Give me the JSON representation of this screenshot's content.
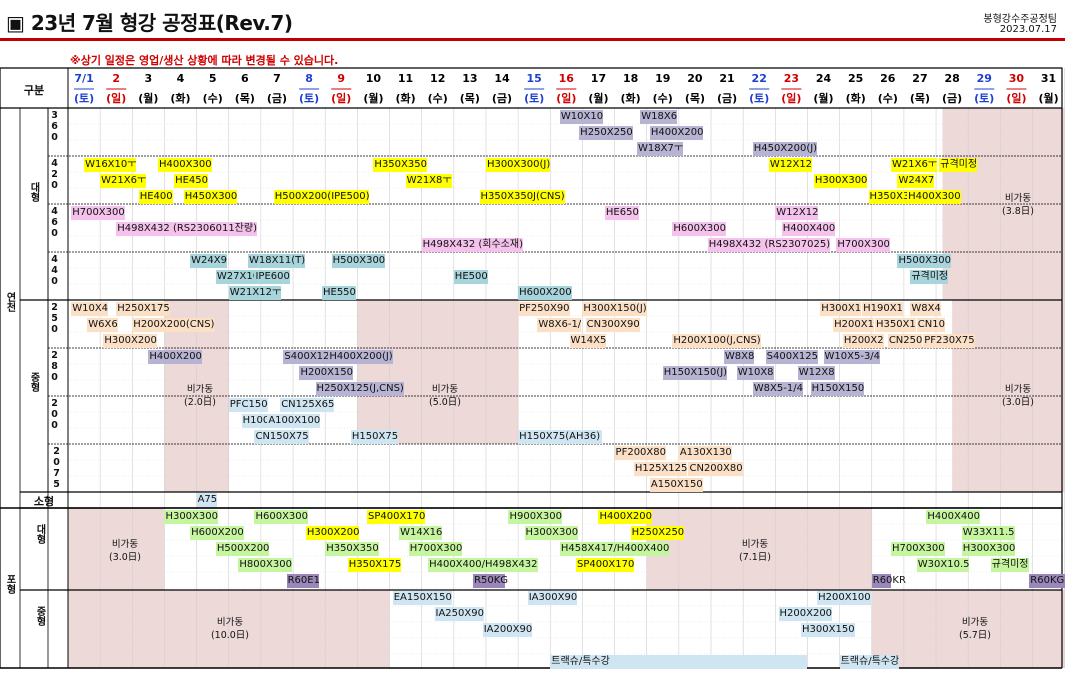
{
  "header": {
    "title": "▣ 23년 7월 형강 공정표(Rev.7)",
    "team": "봉형강수주공정팀",
    "date": "2023.07.17",
    "notice": "※상기 일정은 영업/생산 상황에 따라 변경될 수 있습니다."
  },
  "table": {
    "corner_label": "구분",
    "plants": [
      {
        "label": "연천"
      },
      {
        "label": "포형"
      }
    ],
    "groups": [
      {
        "label": "대형"
      },
      {
        "label": "중형"
      },
      {
        "label": "소형"
      },
      {
        "label": "대형"
      },
      {
        "label": "중형"
      }
    ],
    "mills": [
      {
        "label": "360"
      },
      {
        "label": "420"
      },
      {
        "label": "460"
      },
      {
        "label": "440"
      },
      {
        "label": "250"
      },
      {
        "label": "280"
      },
      {
        "label": "200"
      },
      {
        "label": "2075"
      }
    ]
  },
  "days": [
    {
      "d": "7/1",
      "w": "(토)",
      "c": "blue"
    },
    {
      "d": "2",
      "w": "(일)",
      "c": "red"
    },
    {
      "d": "3",
      "w": "(월)",
      "c": "black"
    },
    {
      "d": "4",
      "w": "(화)",
      "c": "black"
    },
    {
      "d": "5",
      "w": "(수)",
      "c": "black"
    },
    {
      "d": "6",
      "w": "(목)",
      "c": "black"
    },
    {
      "d": "7",
      "w": "(금)",
      "c": "black"
    },
    {
      "d": "8",
      "w": "(토)",
      "c": "blue"
    },
    {
      "d": "9",
      "w": "(일)",
      "c": "red"
    },
    {
      "d": "10",
      "w": "(월)",
      "c": "black"
    },
    {
      "d": "11",
      "w": "(화)",
      "c": "black"
    },
    {
      "d": "12",
      "w": "(수)",
      "c": "black"
    },
    {
      "d": "13",
      "w": "(목)",
      "c": "black"
    },
    {
      "d": "14",
      "w": "(금)",
      "c": "black"
    },
    {
      "d": "15",
      "w": "(토)",
      "c": "blue"
    },
    {
      "d": "16",
      "w": "(일)",
      "c": "red"
    },
    {
      "d": "17",
      "w": "(월)",
      "c": "black"
    },
    {
      "d": "18",
      "w": "(화)",
      "c": "black"
    },
    {
      "d": "19",
      "w": "(수)",
      "c": "black"
    },
    {
      "d": "20",
      "w": "(목)",
      "c": "black"
    },
    {
      "d": "21",
      "w": "(금)",
      "c": "black"
    },
    {
      "d": "22",
      "w": "(토)",
      "c": "blue"
    },
    {
      "d": "23",
      "w": "(일)",
      "c": "red"
    },
    {
      "d": "24",
      "w": "(월)",
      "c": "black"
    },
    {
      "d": "25",
      "w": "(화)",
      "c": "black"
    },
    {
      "d": "26",
      "w": "(수)",
      "c": "black"
    },
    {
      "d": "27",
      "w": "(목)",
      "c": "black"
    },
    {
      "d": "28",
      "w": "(금)",
      "c": "black"
    },
    {
      "d": "29",
      "w": "(토)",
      "c": "blue"
    },
    {
      "d": "30",
      "w": "(일)",
      "c": "red"
    },
    {
      "d": "31",
      "w": "(월)",
      "c": "black"
    }
  ],
  "colors": {
    "gray": "#b7b3d3",
    "yellow": "#ffff00",
    "pink": "#f4c2ec",
    "green": "#c6f5a0",
    "blue": "#a8d4dc",
    "purple": "#9a86b8",
    "peach": "#fbe0c6",
    "lightblue": "#cfe6f2",
    "offpink": "#eed9d9",
    "red": "#c00000"
  },
  "notes": [
    {
      "t": "비가동\n(3.8日)"
    },
    {
      "t": "비가동\n(2.0日)"
    },
    {
      "t": "비가동\n(5.0日)"
    },
    {
      "t": "비가동\n(3.0日)"
    },
    {
      "t": "비가동\n(3.0日)"
    },
    {
      "t": "비가동\n(7.1日)"
    },
    {
      "t": "비가동\n(10.0日)"
    },
    {
      "t": "비가동\n(5.7日)"
    }
  ],
  "bars": [
    {
      "t": "W10X10",
      "c": "gray"
    },
    {
      "t": "W18X6",
      "c": "gray"
    },
    {
      "t": "H250X250",
      "c": "gray"
    },
    {
      "t": "H400X200",
      "c": "gray"
    },
    {
      "t": "W18X7ㅜ",
      "c": "gray"
    },
    {
      "t": "H450X200(J)",
      "c": "gray"
    },
    {
      "t": "W16X10ㅜ",
      "c": "yellow"
    },
    {
      "t": "H400X300",
      "c": "yellow"
    },
    {
      "t": "H350X350",
      "c": "yellow"
    },
    {
      "t": "H300X300(J)",
      "c": "yellow"
    },
    {
      "t": "W12X12",
      "c": "yellow"
    },
    {
      "t": "W21X6ㅜ",
      "c": "yellow"
    },
    {
      "t": "규격미정",
      "c": "yellow"
    },
    {
      "t": "W21X6ㅜ",
      "c": "yellow"
    },
    {
      "t": "HE450",
      "c": "yellow"
    },
    {
      "t": "W21X8ㅜ",
      "c": "yellow"
    },
    {
      "t": "H300X300",
      "c": "yellow"
    },
    {
      "t": "W24X7",
      "c": "yellow"
    },
    {
      "t": "HE400",
      "c": "yellow"
    },
    {
      "t": "H450X300",
      "c": "yellow"
    },
    {
      "t": "H500X200(IPE500)",
      "c": "yellow"
    },
    {
      "t": "H350X350J(CNS)",
      "c": "yellow"
    },
    {
      "t": "H350X350",
      "c": "yellow"
    },
    {
      "t": "H400X300",
      "c": "yellow"
    },
    {
      "t": "H700X300",
      "c": "pink"
    },
    {
      "t": "HE650",
      "c": "pink"
    },
    {
      "t": "W12X12",
      "c": "pink"
    },
    {
      "t": "H498X432 (RS2306011잔량)",
      "c": "pink"
    },
    {
      "t": "H600X300",
      "c": "pink"
    },
    {
      "t": "H400X400",
      "c": "pink"
    },
    {
      "t": "H498X432 (회수소재)",
      "c": "pink"
    },
    {
      "t": "H498X432 (RS2307025)",
      "c": "pink"
    },
    {
      "t": "H700X300",
      "c": "pink"
    },
    {
      "t": "W24X9",
      "c": "blue"
    },
    {
      "t": "W18X11(T)",
      "c": "blue"
    },
    {
      "t": "H500X300",
      "c": "blue"
    },
    {
      "t": "H500X300",
      "c": "blue"
    },
    {
      "t": "W27X10",
      "c": "blue"
    },
    {
      "t": "IPE600",
      "c": "blue"
    },
    {
      "t": "HE500",
      "c": "blue"
    },
    {
      "t": "규격미정",
      "c": "blue"
    },
    {
      "t": "W21X12ㅜ",
      "c": "blue"
    },
    {
      "t": "HE550",
      "c": "blue"
    },
    {
      "t": "H600X200",
      "c": "blue"
    },
    {
      "t": "W10X4",
      "c": "peach"
    },
    {
      "t": "H250X175",
      "c": "peach"
    },
    {
      "t": "PF250X90",
      "c": "peach"
    },
    {
      "t": "H300X150(J)",
      "c": "peach"
    },
    {
      "t": "H300X1",
      "c": "peach"
    },
    {
      "t": "H190X1",
      "c": "peach"
    },
    {
      "t": "W8X4",
      "c": "peach"
    },
    {
      "t": "W6X6",
      "c": "peach"
    },
    {
      "t": "H200X200(CNS)",
      "c": "peach"
    },
    {
      "t": "W8X6-1/",
      "c": "peach"
    },
    {
      "t": "CN300X90",
      "c": "peach"
    },
    {
      "t": "H200X1",
      "c": "peach"
    },
    {
      "t": "H350X1",
      "c": "peach"
    },
    {
      "t": "CN10",
      "c": "peach"
    },
    {
      "t": "H300X200",
      "c": "peach"
    },
    {
      "t": "W14X5",
      "c": "peach"
    },
    {
      "t": "H200X100(J,CNS)",
      "c": "peach"
    },
    {
      "t": "H200X2",
      "c": "peach"
    },
    {
      "t": "CN250",
      "c": "peach"
    },
    {
      "t": "PF230X75",
      "c": "peach"
    },
    {
      "t": "H400X200",
      "c": "gray"
    },
    {
      "t": "S400X125",
      "c": "gray"
    },
    {
      "t": "H400X200(J)",
      "c": "gray"
    },
    {
      "t": "W8X8",
      "c": "gray"
    },
    {
      "t": "S400X125",
      "c": "gray"
    },
    {
      "t": "W10X5-3/4",
      "c": "gray"
    },
    {
      "t": "H200X150",
      "c": "gray"
    },
    {
      "t": "H150X150(J)",
      "c": "gray"
    },
    {
      "t": "W10X8",
      "c": "gray"
    },
    {
      "t": "W12X8",
      "c": "gray"
    },
    {
      "t": "H250X125(J,CNS)",
      "c": "gray"
    },
    {
      "t": "W8X5-1/4",
      "c": "gray"
    },
    {
      "t": "H150X150",
      "c": "gray"
    },
    {
      "t": "PFC150",
      "c": "lightblue"
    },
    {
      "t": "CN125X65",
      "c": "lightblue"
    },
    {
      "t": "H100X100",
      "c": "lightblue"
    },
    {
      "t": "A100X100",
      "c": "lightblue"
    },
    {
      "t": "CN150X75",
      "c": "lightblue"
    },
    {
      "t": "H150X75",
      "c": "lightblue"
    },
    {
      "t": "H150X75(AH36)",
      "c": "lightblue"
    },
    {
      "t": "PF200X80",
      "c": "peach"
    },
    {
      "t": "A130X130",
      "c": "peach"
    },
    {
      "t": "H125X125",
      "c": "peach"
    },
    {
      "t": "CN200X80",
      "c": "peach"
    },
    {
      "t": "A150X150",
      "c": "peach"
    },
    {
      "t": "A75",
      "c": "lightblue"
    },
    {
      "t": "H300X300",
      "c": "green"
    },
    {
      "t": "H600X300",
      "c": "green"
    },
    {
      "t": "SP400X170",
      "c": "yellow"
    },
    {
      "t": "H900X300",
      "c": "green"
    },
    {
      "t": "H400X200",
      "c": "yellow"
    },
    {
      "t": "H400X400",
      "c": "green"
    },
    {
      "t": "H600X200",
      "c": "green"
    },
    {
      "t": "H300X200",
      "c": "yellow"
    },
    {
      "t": "W14X16",
      "c": "green"
    },
    {
      "t": "H300X300",
      "c": "green"
    },
    {
      "t": "H250X250",
      "c": "yellow"
    },
    {
      "t": "W33X11.5",
      "c": "green"
    },
    {
      "t": "H500X200",
      "c": "green"
    },
    {
      "t": "H350X350",
      "c": "green"
    },
    {
      "t": "H700X300",
      "c": "green"
    },
    {
      "t": "H458X417/H400X400",
      "c": "green"
    },
    {
      "t": "H700X300",
      "c": "green"
    },
    {
      "t": "H300X300",
      "c": "green"
    },
    {
      "t": "H800X300",
      "c": "green"
    },
    {
      "t": "H350X175",
      "c": "yellow"
    },
    {
      "t": "H400X400/H498X432",
      "c": "green"
    },
    {
      "t": "SP400X170",
      "c": "yellow"
    },
    {
      "t": "W30X10.5",
      "c": "green"
    },
    {
      "t": "규격미정",
      "c": "green"
    },
    {
      "t": "R60E1",
      "c": "purple"
    },
    {
      "t": "R50KG",
      "c": "purple"
    },
    {
      "t": "R60KR",
      "c": "purple"
    },
    {
      "t": "R60KG",
      "c": "purple"
    },
    {
      "t": "EA150X150",
      "c": "lightblue"
    },
    {
      "t": "IA300X90",
      "c": "lightblue"
    },
    {
      "t": "H200X100",
      "c": "lightblue"
    },
    {
      "t": "IA250X90",
      "c": "lightblue"
    },
    {
      "t": "H200X200",
      "c": "lightblue"
    },
    {
      "t": "IA200X90",
      "c": "lightblue"
    },
    {
      "t": "H300X150",
      "c": "lightblue"
    },
    {
      "t": "트랙슈/특수강",
      "c": "lightblue"
    },
    {
      "t": "트랙슈/특수강",
      "c": "lightblue"
    }
  ]
}
